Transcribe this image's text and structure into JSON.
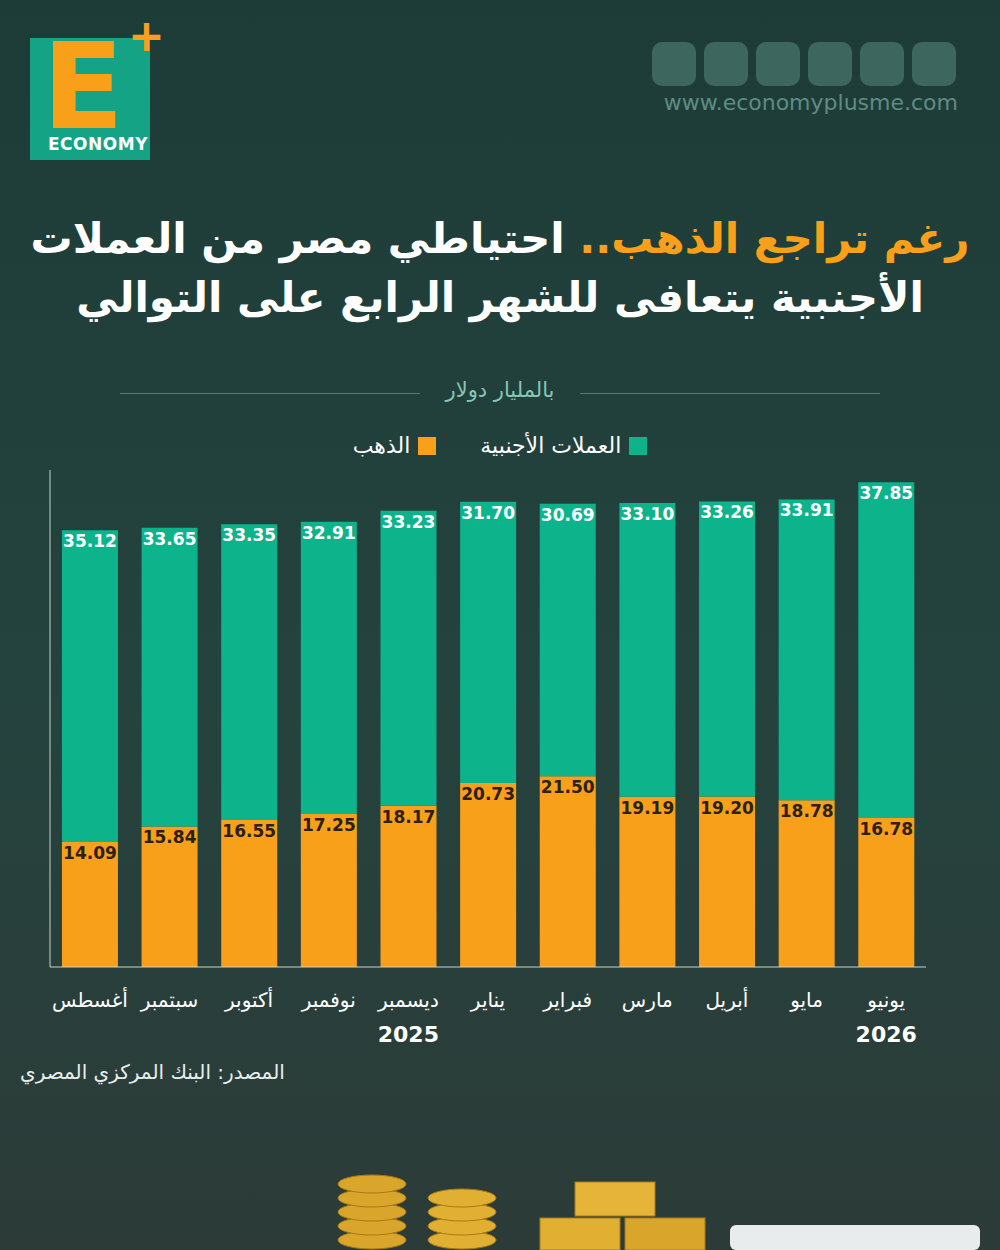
{
  "branding": {
    "logo_letter": "E",
    "logo_plus": "+",
    "logo_name": "ECONOMY",
    "website": "www.economyplusme.com"
  },
  "chart_data": {
    "type": "bar",
    "title": "رغم تراجع الذهب.. احتياطي مصر من العملات الأجنبية يتعافى للشهر الرابع على التوالي",
    "subtitle": "بالمليار دولار",
    "categories": [
      "أغسطس",
      "سبتمبر",
      "أكتوبر",
      "نوفمبر",
      "ديسمبر\n2025",
      "يناير",
      "فبراير",
      "مارس",
      "أبريل",
      "مايو",
      "يونيو\n2026"
    ],
    "series": [
      {
        "name": "العملات الأجنبية",
        "color": "#0db48b",
        "values": [
          35.12,
          33.65,
          33.35,
          32.91,
          33.23,
          31.7,
          30.69,
          33.1,
          33.26,
          33.91,
          37.85
        ],
        "value_labels": [
          "35.12",
          "33.65",
          "33.35",
          "32.91",
          "33.23",
          "31.70",
          "30.69",
          "33.10",
          "33.26",
          "33.91",
          "37.85"
        ]
      },
      {
        "name": "الذهب",
        "color": "#f9a01b",
        "values": [
          14.09,
          15.84,
          16.55,
          17.25,
          18.17,
          20.73,
          21.5,
          19.19,
          19.2,
          18.78,
          16.78
        ],
        "value_labels": [
          "14.09",
          "15.84",
          "16.55",
          "17.25",
          "18.17",
          "20.73",
          "21.50",
          "19.19",
          "19.20",
          "18.78",
          "16.78"
        ]
      }
    ],
    "stacked": true,
    "data_labels": true,
    "ylim": [
      0,
      56
    ],
    "tick_labels": "x",
    "grid": false,
    "legend": "top"
  },
  "source": "المصدر: البنك المركزي المصري"
}
